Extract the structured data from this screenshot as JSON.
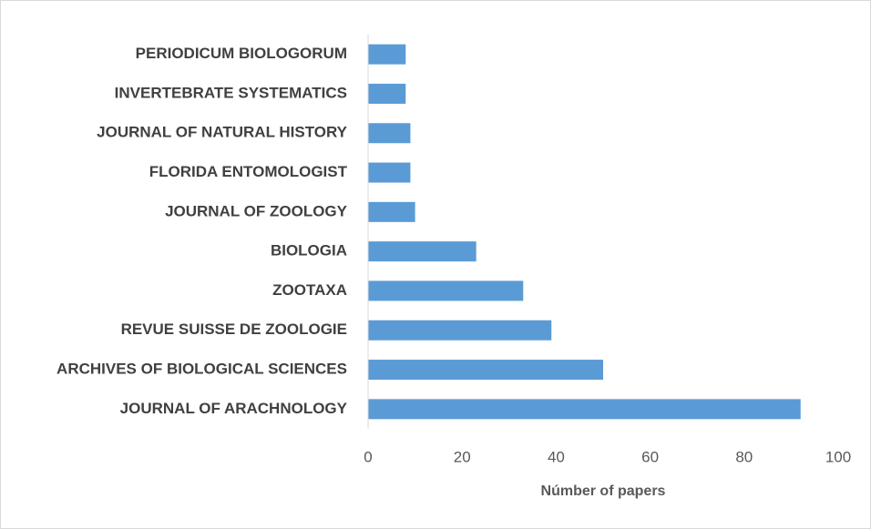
{
  "chart_data": {
    "type": "barh",
    "categories": [
      "PERIODICUM BIOLOGORUM",
      "INVERTEBRATE SYSTEMATICS",
      "JOURNAL OF NATURAL HISTORY",
      "FLORIDA ENTOMOLOGIST",
      "JOURNAL OF ZOOLOGY",
      "BIOLOGIA",
      "ZOOTAXA",
      "REVUE SUISSE DE ZOOLOGIE",
      "ARCHIVES OF BIOLOGICAL SCIENCES",
      "JOURNAL OF ARACHNOLOGY"
    ],
    "values": [
      8,
      8,
      9,
      9,
      10,
      23,
      33,
      39,
      50,
      92
    ],
    "color": "#5b9bd5",
    "xlabel": "Númber of papers",
    "xlim": [
      0,
      100
    ],
    "xticks": [
      0,
      20,
      40,
      60,
      80,
      100
    ],
    "grid": false
  }
}
